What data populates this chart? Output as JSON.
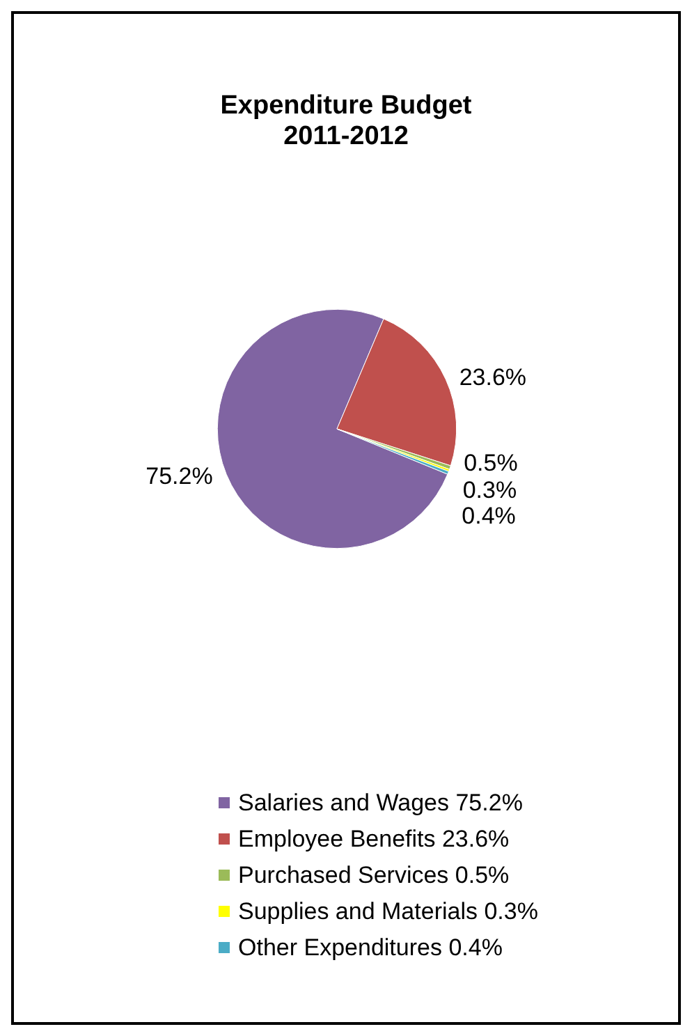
{
  "chart_data": {
    "type": "pie",
    "title": "Expenditure Budget\n2011-2012",
    "categories": [
      "Salaries and Wages 75.2%",
      "Employee Benefits 23.6%",
      "Purchased Services 0.5%",
      "Supplies and Materials 0.3%",
      "Other Expenditures 0.4%"
    ],
    "values": [
      75.2,
      23.6,
      0.5,
      0.3,
      0.4
    ],
    "value_labels": [
      "75.2%",
      "23.6%",
      "0.5%",
      "0.3%",
      "0.4%"
    ],
    "colors": [
      "#8064a2",
      "#c0504d",
      "#9bbb59",
      "#ffff00",
      "#4bacc6"
    ],
    "legend": "bottom"
  }
}
